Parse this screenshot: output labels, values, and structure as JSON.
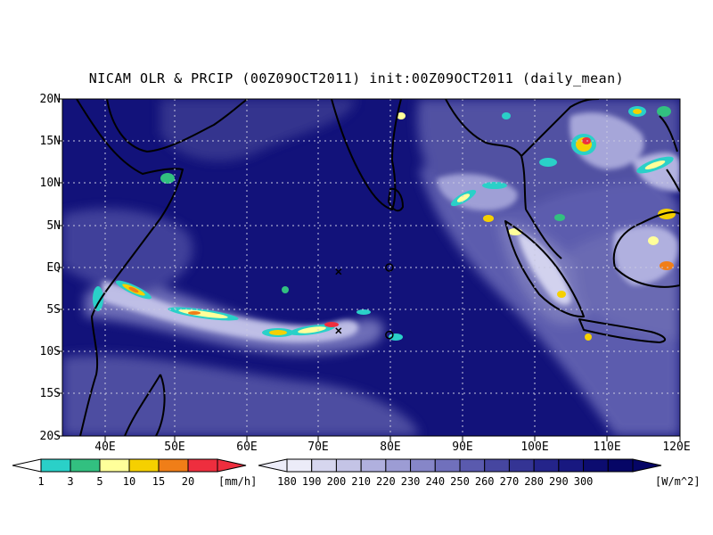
{
  "title": "NICAM OLR & PRCIP (00Z09OCT2011) init:00Z09OCT2011 (daily_mean)",
  "map": {
    "lon_range": [
      35,
      120
    ],
    "lat_range": [
      -20,
      20
    ],
    "lat_labels": [
      "20N",
      "15N",
      "10N",
      "5N",
      "EQ",
      "5S",
      "10S",
      "15S",
      "20S"
    ],
    "lon_labels": [
      "40E",
      "50E",
      "60E",
      "70E",
      "80E",
      "90E",
      "100E",
      "110E",
      "120E"
    ],
    "gridlines": "dotted",
    "ocean_background": "#12127a",
    "markers": [
      {
        "symbol": "x",
        "lon": 73,
        "lat": -0.5
      },
      {
        "symbol": "o",
        "lon": 80,
        "lat": 0
      },
      {
        "symbol": "x",
        "lon": 73,
        "lat": -7.5
      },
      {
        "symbol": "o",
        "lon": 80,
        "lat": -8
      }
    ]
  },
  "precip_colorbar": {
    "labels": [
      "1",
      "3",
      "5",
      "10",
      "15",
      "20"
    ],
    "units": "[mm/h]",
    "colors": [
      "#2ad0c8",
      "#32c080",
      "#ffff9a",
      "#f5d000",
      "#f07e18",
      "#ee2e3e"
    ]
  },
  "olr_colorbar": {
    "labels": [
      "180",
      "190",
      "200",
      "210",
      "220",
      "230",
      "240",
      "250",
      "260",
      "270",
      "280",
      "290",
      "300"
    ],
    "units": "[W/m^2]",
    "colors": [
      "#ececf8",
      "#d6d6ee",
      "#c4c4e6",
      "#b0b0de",
      "#9c9cd4",
      "#8686c8",
      "#7070bc",
      "#5a5aae",
      "#4646a0",
      "#343494",
      "#24248a",
      "#181880",
      "#0c0c70",
      "#060666"
    ]
  }
}
